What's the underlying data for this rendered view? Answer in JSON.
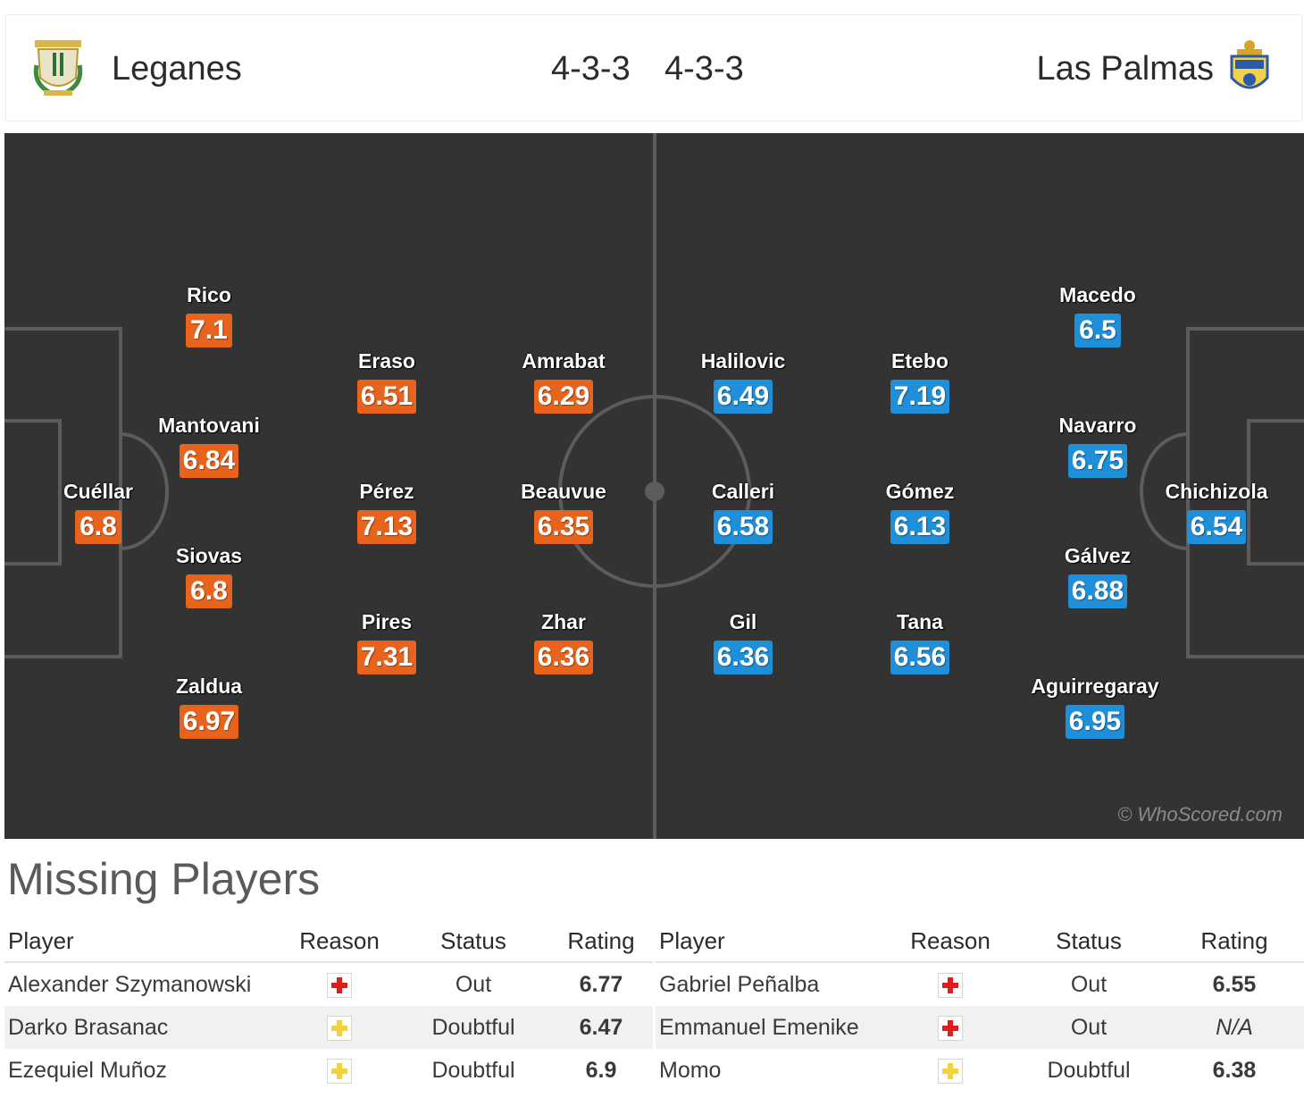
{
  "header": {
    "home": {
      "name": "Leganes",
      "formation": "4-3-3",
      "crest": "leganes-crest-icon"
    },
    "away": {
      "name": "Las Palmas",
      "formation": "4-3-3",
      "crest": "las-palmas-crest-icon"
    }
  },
  "pitch": {
    "home_color": "#e8641c",
    "away_color": "#1f8fd9",
    "watermark": "© WhoScored.com",
    "home_players": [
      {
        "name": "Cuéllar",
        "rating": "6.8"
      },
      {
        "name": "Rico",
        "rating": "7.1"
      },
      {
        "name": "Mantovani",
        "rating": "6.84"
      },
      {
        "name": "Siovas",
        "rating": "6.8"
      },
      {
        "name": "Zaldua",
        "rating": "6.97"
      },
      {
        "name": "Eraso",
        "rating": "6.51"
      },
      {
        "name": "Pérez",
        "rating": "7.13"
      },
      {
        "name": "Pires",
        "rating": "7.31"
      },
      {
        "name": "Amrabat",
        "rating": "6.29"
      },
      {
        "name": "Beauvue",
        "rating": "6.35"
      },
      {
        "name": "Zhar",
        "rating": "6.36"
      }
    ],
    "away_players": [
      {
        "name": "Halilovic",
        "rating": "6.49"
      },
      {
        "name": "Calleri",
        "rating": "6.58"
      },
      {
        "name": "Gil",
        "rating": "6.36"
      },
      {
        "name": "Etebo",
        "rating": "7.19"
      },
      {
        "name": "Gómez",
        "rating": "6.13"
      },
      {
        "name": "Tana",
        "rating": "6.56"
      },
      {
        "name": "Macedo",
        "rating": "6.5"
      },
      {
        "name": "Navarro",
        "rating": "6.75"
      },
      {
        "name": "Gálvez",
        "rating": "6.88"
      },
      {
        "name": "Aguirregaray",
        "rating": "6.95"
      },
      {
        "name": "Chichizola",
        "rating": "6.54"
      }
    ]
  },
  "missing": {
    "title": "Missing Players",
    "columns": [
      "Player",
      "Reason",
      "Status",
      "Rating"
    ],
    "home": [
      {
        "player": "Alexander Szymanowski",
        "reason": "injury-icon",
        "status": "Out",
        "rating": "6.77"
      },
      {
        "player": "Darko Brasanac",
        "reason": "doubtful-icon",
        "status": "Doubtful",
        "rating": "6.47"
      },
      {
        "player": "Ezequiel Muñoz",
        "reason": "doubtful-icon",
        "status": "Doubtful",
        "rating": "6.9"
      }
    ],
    "away": [
      {
        "player": "Gabriel Peñalba",
        "reason": "injury-icon",
        "status": "Out",
        "rating": "6.55"
      },
      {
        "player": "Emmanuel Emenike",
        "reason": "injury-icon",
        "status": "Out",
        "rating": "N/A"
      },
      {
        "player": "Momo",
        "reason": "doubtful-icon",
        "status": "Doubtful",
        "rating": "6.38"
      }
    ]
  }
}
